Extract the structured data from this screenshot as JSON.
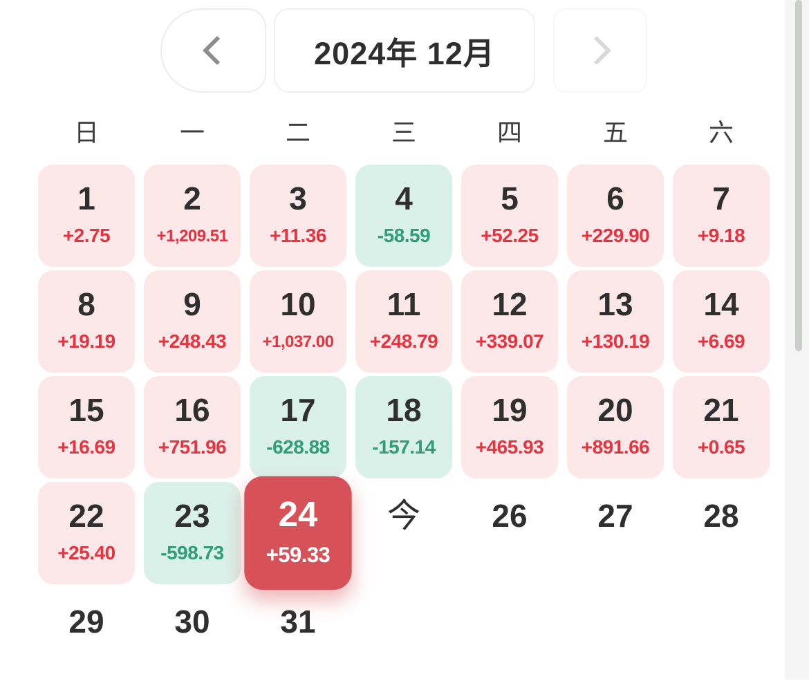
{
  "header": {
    "title": "2024年 12月",
    "prev_icon": "chevron-left-icon",
    "next_icon": "chevron-right-icon"
  },
  "weekdays": [
    "日",
    "一",
    "二",
    "三",
    "四",
    "五",
    "六"
  ],
  "calendar": {
    "year_month": "2024年 12月",
    "today_label": "今",
    "days": [
      {
        "day": "1",
        "value": "+2.75",
        "type": "gain"
      },
      {
        "day": "2",
        "value": "+1,209.51",
        "type": "gain"
      },
      {
        "day": "3",
        "value": "+11.36",
        "type": "gain"
      },
      {
        "day": "4",
        "value": "-58.59",
        "type": "loss"
      },
      {
        "day": "5",
        "value": "+52.25",
        "type": "gain"
      },
      {
        "day": "6",
        "value": "+229.90",
        "type": "gain"
      },
      {
        "day": "7",
        "value": "+9.18",
        "type": "gain"
      },
      {
        "day": "8",
        "value": "+19.19",
        "type": "gain"
      },
      {
        "day": "9",
        "value": "+248.43",
        "type": "gain"
      },
      {
        "day": "10",
        "value": "+1,037.00",
        "type": "gain"
      },
      {
        "day": "11",
        "value": "+248.79",
        "type": "gain"
      },
      {
        "day": "12",
        "value": "+339.07",
        "type": "gain"
      },
      {
        "day": "13",
        "value": "+130.19",
        "type": "gain"
      },
      {
        "day": "14",
        "value": "+6.69",
        "type": "gain"
      },
      {
        "day": "15",
        "value": "+16.69",
        "type": "gain"
      },
      {
        "day": "16",
        "value": "+751.96",
        "type": "gain"
      },
      {
        "day": "17",
        "value": "-628.88",
        "type": "loss"
      },
      {
        "day": "18",
        "value": "-157.14",
        "type": "loss"
      },
      {
        "day": "19",
        "value": "+465.93",
        "type": "gain"
      },
      {
        "day": "20",
        "value": "+891.66",
        "type": "gain"
      },
      {
        "day": "21",
        "value": "+0.65",
        "type": "gain"
      },
      {
        "day": "22",
        "value": "+25.40",
        "type": "gain"
      },
      {
        "day": "23",
        "value": "-598.73",
        "type": "loss"
      },
      {
        "day": "24",
        "value": "+59.33",
        "type": "selected"
      },
      {
        "day": "今",
        "type": "today"
      },
      {
        "day": "26",
        "type": "future"
      },
      {
        "day": "27",
        "type": "future"
      },
      {
        "day": "28",
        "type": "future"
      },
      {
        "day": "29",
        "type": "future"
      },
      {
        "day": "30",
        "type": "future"
      },
      {
        "day": "31",
        "type": "future"
      }
    ]
  },
  "colors": {
    "gain_bg": "#fce7e9",
    "gain_text": "#e5333f",
    "loss_bg": "#daf1ea",
    "loss_text": "#2f9e78",
    "selected_bg": "#d75158",
    "selected_text": "#ffffff",
    "day_number": "#2f2f2f"
  }
}
